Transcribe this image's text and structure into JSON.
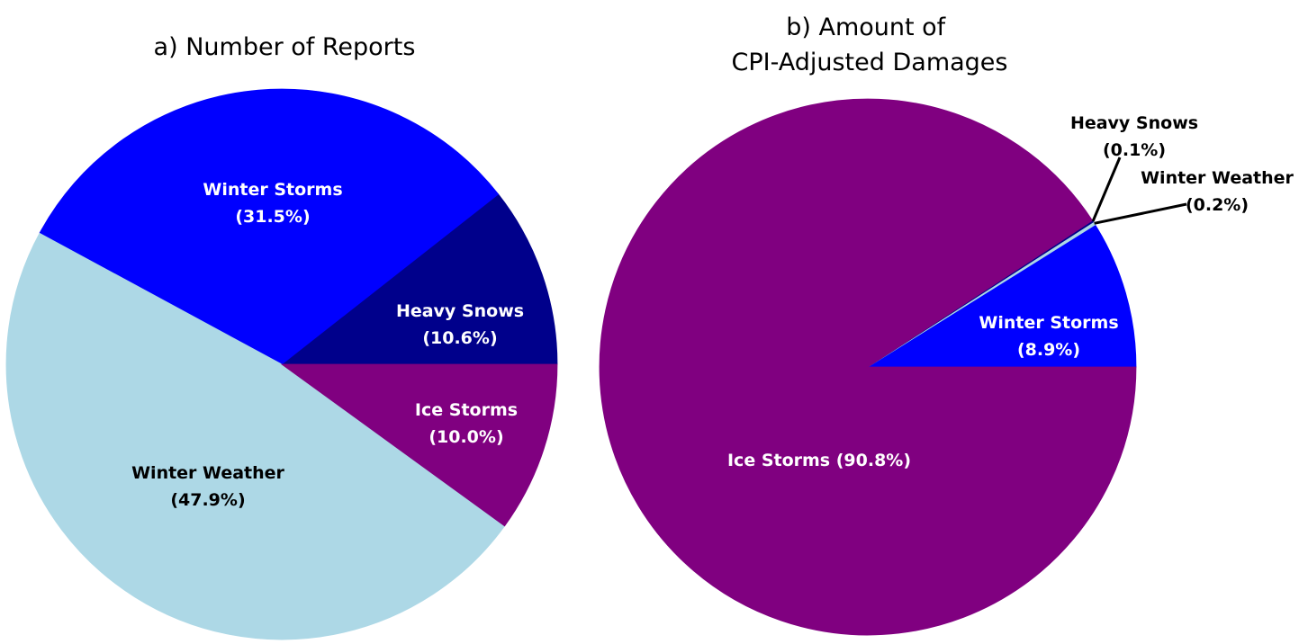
{
  "chart_data": [
    {
      "type": "pie",
      "title": "a) Number of Reports",
      "slices": [
        {
          "name": "Heavy Snows",
          "value": 10.6,
          "color": "#00008B",
          "label_color": "#ffffff",
          "label_lines": [
            "Heavy Snows",
            "(10.6%)"
          ]
        },
        {
          "name": "Winter Storms",
          "value": 31.5,
          "color": "#0000FF",
          "label_color": "#ffffff",
          "label_lines": [
            "Winter Storms",
            "(31.5%)"
          ]
        },
        {
          "name": "Winter Weather",
          "value": 47.9,
          "color": "#ADD8E6",
          "label_color": "#000000",
          "label_lines": [
            "Winter Weather",
            "(47.9%)"
          ]
        },
        {
          "name": "Ice Storms",
          "value": 10.0,
          "color": "#800080",
          "label_color": "#ffffff",
          "label_lines": [
            "Ice Storms",
            "(10.0%)"
          ]
        }
      ],
      "legend": "none"
    },
    {
      "type": "pie",
      "title_lines": [
        "b) Amount of",
        "CPI-Adjusted Damages"
      ],
      "slices": [
        {
          "name": "Winter Storms",
          "value": 8.9,
          "color": "#0000FF",
          "label_color": "#ffffff",
          "label_lines": [
            "Winter Storms",
            "(8.9%)"
          ]
        },
        {
          "name": "Winter Weather",
          "value": 0.2,
          "color": "#ADD8E6",
          "label_color": "#000000",
          "label_lines": [
            "Winter Weather",
            "(0.2%)"
          ],
          "callout": true
        },
        {
          "name": "Heavy Snows",
          "value": 0.1,
          "color": "#00008B",
          "label_color": "#000000",
          "label_lines": [
            "Heavy Snows",
            "(0.1%)"
          ],
          "callout": true
        },
        {
          "name": "Ice Storms",
          "value": 90.8,
          "color": "#800080",
          "label_color": "#ffffff",
          "label_lines": [
            "Ice Storms (90.8%)"
          ]
        }
      ],
      "legend": "none"
    }
  ]
}
